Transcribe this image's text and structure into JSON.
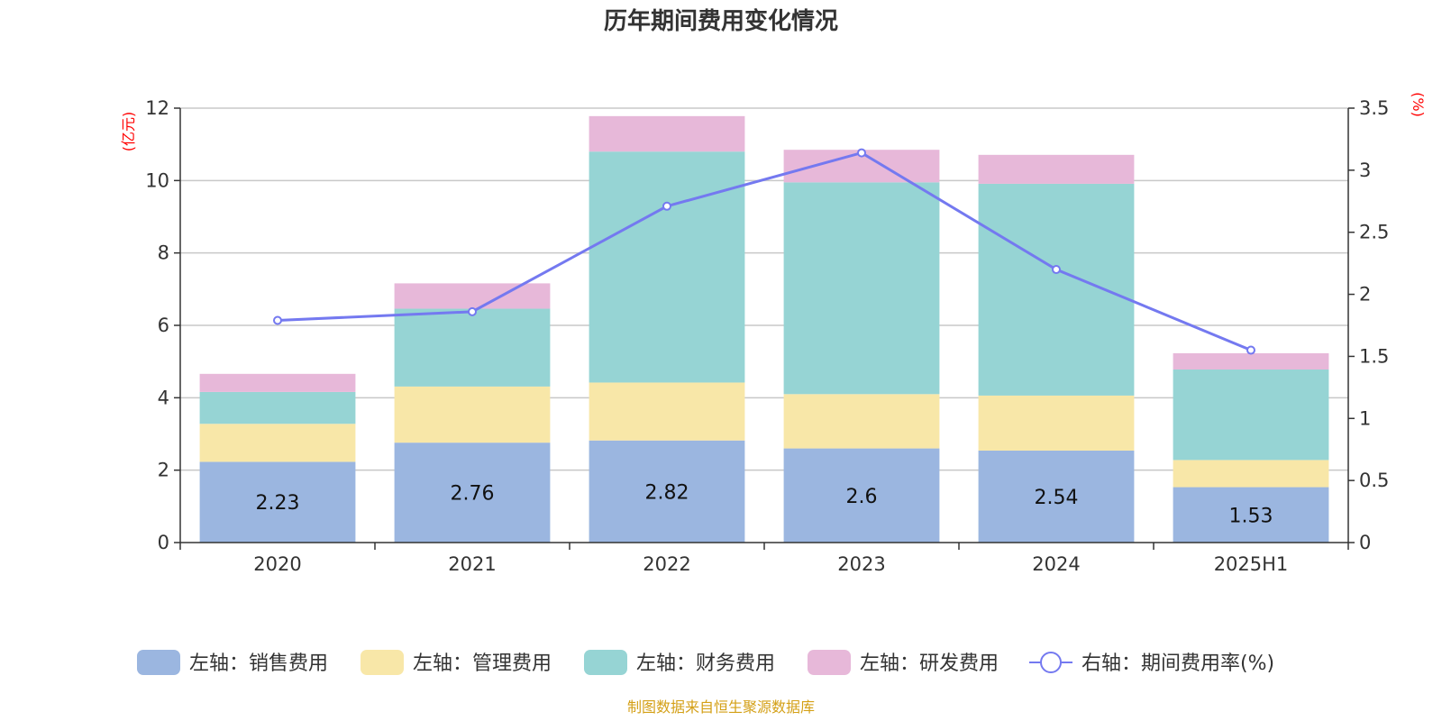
{
  "chart_data": {
    "type": "bar",
    "title": "历年期间费用变化情况",
    "categories": [
      "2020",
      "2021",
      "2022",
      "2023",
      "2024",
      "2025H1"
    ],
    "left_axis": {
      "unit_label": "(亿元)",
      "ylim": [
        0,
        12
      ],
      "ticks": [
        "0",
        "2",
        "4",
        "6",
        "8",
        "10",
        "12"
      ]
    },
    "right_axis": {
      "unit_label": "(%)",
      "ylim": [
        0,
        3.5
      ],
      "ticks": [
        "0",
        "0.5",
        "1",
        "1.5",
        "2",
        "2.5",
        "3",
        "3.5"
      ]
    },
    "series": [
      {
        "name": "左轴：销售费用",
        "type": "bar",
        "axis": "left",
        "color": "#9bb6e0",
        "values": [
          2.23,
          2.76,
          2.82,
          2.6,
          2.54,
          1.53
        ],
        "labels": [
          "2.23",
          "2.76",
          "2.82",
          "2.6",
          "2.54",
          "1.53"
        ]
      },
      {
        "name": "左轴：管理费用",
        "type": "bar",
        "axis": "left",
        "color": "#f8e7a8",
        "values": [
          1.05,
          1.55,
          1.6,
          1.5,
          1.52,
          0.75
        ]
      },
      {
        "name": "左轴：财务费用",
        "type": "bar",
        "axis": "left",
        "color": "#96d4d4",
        "values": [
          0.88,
          2.15,
          6.38,
          5.85,
          5.85,
          2.5
        ]
      },
      {
        "name": "左轴：研发费用",
        "type": "bar",
        "axis": "left",
        "color": "#e7b8d9",
        "values": [
          0.5,
          0.7,
          0.98,
          0.9,
          0.8,
          0.45
        ]
      },
      {
        "name": "右轴：期间费用率(%)",
        "type": "line",
        "axis": "right",
        "color": "#7479f0",
        "values": [
          1.79,
          1.86,
          2.71,
          3.14,
          2.2,
          1.55
        ]
      }
    ],
    "stacked": true,
    "grid": true,
    "legend_position": "bottom"
  },
  "footer": {
    "source": "制图数据来自恒生聚源数据库"
  }
}
